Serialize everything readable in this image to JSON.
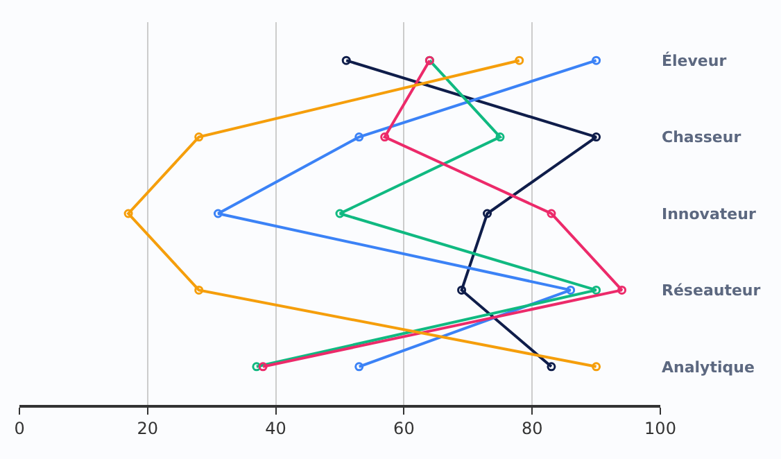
{
  "chart_data": {
    "type": "line",
    "orientation": "horizontal",
    "categories": [
      "Éleveur",
      "Chasseur",
      "Innovateur",
      "Réseauteur",
      "Analytique"
    ],
    "series": [
      {
        "color": "#0f1d4a",
        "values": [
          51,
          90,
          73,
          69,
          83
        ]
      },
      {
        "color": "#3b82f6",
        "values": [
          90,
          53,
          31,
          86,
          53
        ]
      },
      {
        "color": "#10b981",
        "values": [
          64,
          75,
          50,
          90,
          37
        ]
      },
      {
        "color": "#ec2a6a",
        "values": [
          64,
          57,
          83,
          94,
          38
        ]
      },
      {
        "color": "#f59e0b",
        "values": [
          78,
          28,
          17,
          28,
          90
        ]
      }
    ],
    "xlim": [
      0,
      100
    ],
    "xticks": [
      0,
      20,
      40,
      60,
      80,
      100
    ],
    "grid": "x",
    "marker": "circle",
    "line_style": "solid"
  }
}
